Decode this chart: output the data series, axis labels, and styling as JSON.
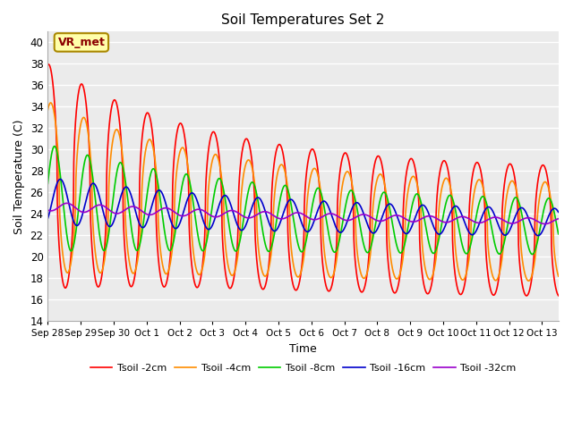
{
  "title": "Soil Temperatures Set 2",
  "xlabel": "Time",
  "ylabel": "Soil Temperature (C)",
  "ylim": [
    14,
    41
  ],
  "yticks": [
    14,
    16,
    18,
    20,
    22,
    24,
    26,
    28,
    30,
    32,
    34,
    36,
    38,
    40
  ],
  "x_tick_labels": [
    "Sep 28",
    "Sep 29",
    "Sep 30",
    "Oct 1",
    "Oct 2",
    "Oct 3",
    "Oct 4",
    "Oct 5",
    "Oct 6",
    "Oct 7",
    "Oct 8",
    "Oct 9",
    "Oct 10",
    "Oct 11",
    "Oct 12",
    "Oct 13"
  ],
  "series": [
    {
      "label": "Tsoil -2cm",
      "color": "#FF0000",
      "lw": 1.2
    },
    {
      "label": "Tsoil -4cm",
      "color": "#FF8C00",
      "lw": 1.2
    },
    {
      "label": "Tsoil -8cm",
      "color": "#00CC00",
      "lw": 1.2
    },
    {
      "label": "Tsoil -16cm",
      "color": "#0000CC",
      "lw": 1.2
    },
    {
      "label": "Tsoil -32cm",
      "color": "#9900CC",
      "lw": 1.2
    }
  ],
  "annotation_text": "VR_met",
  "plot_bg_color": "#EBEBEB"
}
